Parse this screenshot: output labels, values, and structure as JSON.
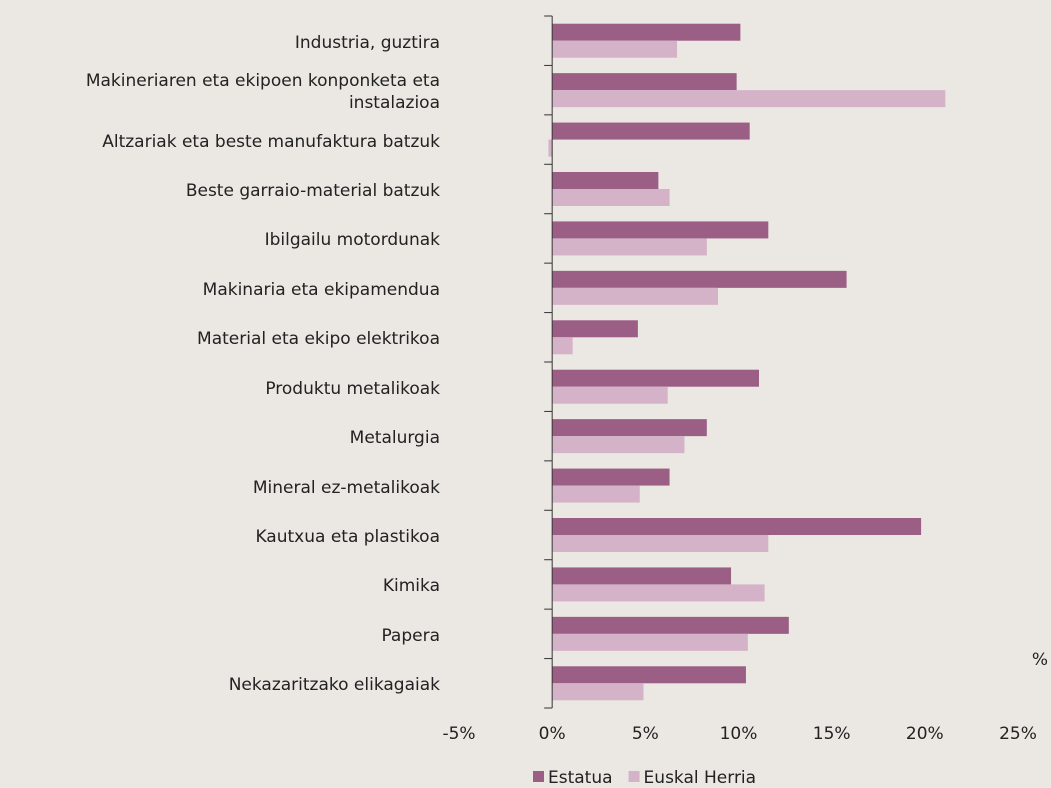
{
  "chart_data": {
    "type": "hbar",
    "categories": [
      "Industria, guztira",
      "Makineriaren eta ekipoen konponketa eta instalazioa",
      "Altzariak eta beste manufaktura batzuk",
      "Beste garraio-material batzuk",
      "Ibilgailu motordunak",
      "Makinaria eta ekipamendua",
      "Material eta ekipo elektrikoa",
      "Produktu metalikoak",
      "Metalurgia",
      "Mineral ez-metalikoak",
      "Kautxua eta plastikoa",
      "Kimika",
      "Papera",
      "Nekazaritzako elikagaiak"
    ],
    "series": [
      {
        "name": "Estatua",
        "color": "#9b5f86",
        "values": [
          10.1,
          9.9,
          10.6,
          5.7,
          11.6,
          15.8,
          4.6,
          11.1,
          8.3,
          6.3,
          19.8,
          9.6,
          12.7,
          10.4
        ]
      },
      {
        "name": "Euskal Herria",
        "color": "#d4b3c8",
        "values": [
          6.7,
          21.1,
          -0.2,
          6.3,
          8.3,
          8.9,
          1.1,
          6.2,
          7.1,
          4.7,
          11.6,
          11.4,
          10.5,
          4.9
        ]
      }
    ],
    "xlim": [
      -5,
      25
    ],
    "xticks": [
      {
        "value": -5,
        "label": "-5%"
      },
      {
        "value": 0,
        "label": "0%"
      },
      {
        "value": 5,
        "label": "5%"
      },
      {
        "value": 10,
        "label": "10%"
      },
      {
        "value": 15,
        "label": "15%"
      },
      {
        "value": 20,
        "label": "20%"
      },
      {
        "value": 25,
        "label": "25%"
      }
    ],
    "unit_label": "%",
    "legend": "bottom"
  }
}
